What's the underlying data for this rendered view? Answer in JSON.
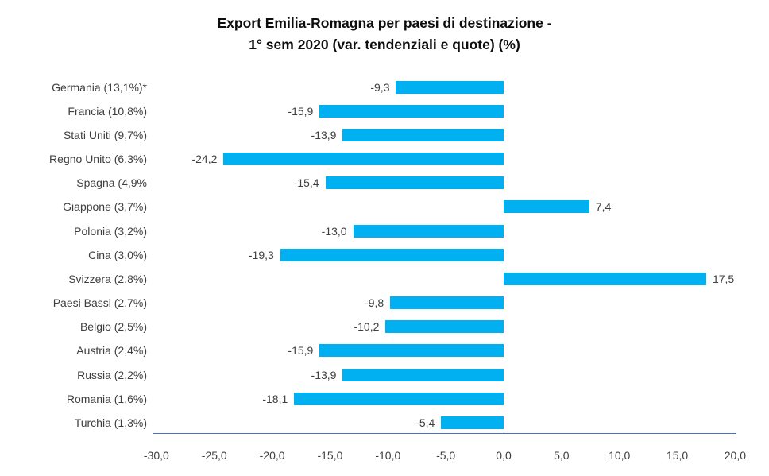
{
  "title": {
    "line1": "Export Emilia-Romagna per paesi di destinazione -",
    "line2": "1° sem 2020 (var. tendenziali e quote) (%)"
  },
  "colors": {
    "bar": "#00B0F0",
    "axis_line": "#4472C4",
    "zero_line": "#d4d4d4",
    "text": "#3f3f3f",
    "title_text": "#0d0d0d",
    "background": "#ffffff"
  },
  "chart_data": {
    "type": "bar",
    "orientation": "horizontal",
    "title": "Export Emilia-Romagna per paesi di destinazione - 1° sem 2020 (var. tendenziali e quote) (%)",
    "categories": [
      "Germania (13,1%)*",
      "Francia (10,8%)",
      "Stati Uniti (9,7%)",
      "Regno Unito (6,3%)",
      "Spagna (4,9%",
      "Giappone (3,7%)",
      "Polonia (3,2%)",
      "Cina (3,0%)",
      "Svizzera (2,8%)",
      "Paesi Bassi (2,7%)",
      "Belgio (2,5%)",
      "Austria (2,4%)",
      "Russia (2,2%)",
      "Romania (1,6%)",
      "Turchia (1,3%)"
    ],
    "values": [
      -9.3,
      -15.9,
      -13.9,
      -24.2,
      -15.4,
      7.4,
      -13.0,
      -19.3,
      17.5,
      -9.8,
      -10.2,
      -15.9,
      -13.9,
      -18.1,
      -5.4
    ],
    "value_labels": [
      "-9,3",
      "-15,9",
      "-13,9",
      "-24,2",
      "-15,4",
      "7,4",
      "-13,0",
      "-19,3",
      "17,5",
      "-9,8",
      "-10,2",
      "-15,9",
      "-13,9",
      "-18,1",
      "-5,4"
    ],
    "xlabel": "",
    "ylabel": "",
    "xlim": [
      -30.0,
      20.0
    ],
    "x_ticks": [
      -30,
      -25,
      -20,
      -15,
      -10,
      -5,
      0,
      5,
      10,
      15,
      20
    ],
    "x_tick_labels": [
      "-30,0",
      "-25,0",
      "-20,0",
      "-15,0",
      "-10,0",
      "-5,0",
      "0,0",
      "5,0",
      "10,0",
      "15,0",
      "20,0"
    ],
    "grid": false,
    "legend": false,
    "data_labels": true
  }
}
